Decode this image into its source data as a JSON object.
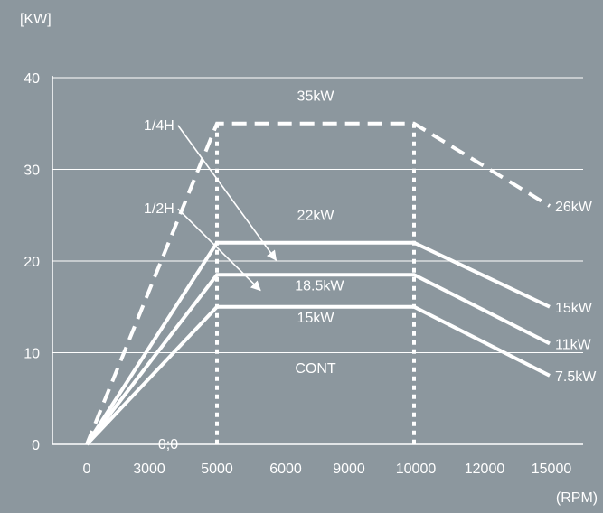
{
  "chart_data": {
    "type": "line",
    "y_unit_label": "[KW]",
    "x_unit_label": "(RPM)",
    "y_ticks": [
      "0",
      "10",
      "20",
      "30",
      "40"
    ],
    "y_tick_values": [
      0,
      10,
      20,
      30,
      40
    ],
    "ylim": [
      0,
      40
    ],
    "x_ticks": [
      "0",
      "3000",
      "5000",
      "6000",
      "9000",
      "10000",
      "12000",
      "15000"
    ],
    "x_tick_values": [
      0,
      3000,
      5000,
      6000,
      9000,
      10000,
      12000,
      15000
    ],
    "origin_label": "0;0",
    "grid": true,
    "series": [
      {
        "style": "dashed",
        "x": [
          0,
          5000,
          10000,
          15000
        ],
        "y": [
          0,
          35,
          35,
          26
        ],
        "end_label": "26kW"
      },
      {
        "style": "solid",
        "x": [
          0,
          5000,
          10000,
          15000
        ],
        "y": [
          0,
          22,
          22,
          15
        ],
        "end_label": "15kW"
      },
      {
        "style": "solid",
        "x": [
          0,
          5000,
          10000,
          15000
        ],
        "y": [
          0,
          18.5,
          18.5,
          11
        ],
        "end_label": "11kW"
      },
      {
        "style": "solid",
        "x": [
          0,
          5000,
          10000,
          15000
        ],
        "y": [
          0,
          15,
          15,
          7.5
        ],
        "end_label": "7.5kW"
      }
    ],
    "vertical_markers": [
      5000,
      10000
    ],
    "annotations": [
      {
        "text": "35kW",
        "x": 7500,
        "y": 37.5
      },
      {
        "text": "22kW",
        "x": 7500,
        "y": 24.5
      },
      {
        "text": "18.5kW",
        "x": 7600,
        "y": 16.8
      },
      {
        "text": "15kW",
        "x": 7500,
        "y": 13.3
      },
      {
        "text": "CONT",
        "x": 7500,
        "y": 7.8
      }
    ],
    "arrows": [
      {
        "text": "1/4H",
        "from": [
          3500,
          34.8
        ],
        "to": [
          6500,
          20.1
        ]
      },
      {
        "text": "1/2H",
        "from": [
          3500,
          25.7
        ],
        "to": [
          6100,
          16.8
        ]
      }
    ]
  }
}
